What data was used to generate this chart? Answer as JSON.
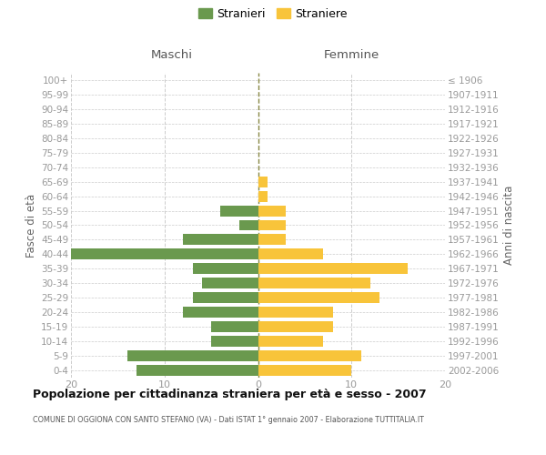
{
  "age_groups": [
    "100+",
    "95-99",
    "90-94",
    "85-89",
    "80-84",
    "75-79",
    "70-74",
    "65-69",
    "60-64",
    "55-59",
    "50-54",
    "45-49",
    "40-44",
    "35-39",
    "30-34",
    "25-29",
    "20-24",
    "15-19",
    "10-14",
    "5-9",
    "0-4"
  ],
  "birth_years": [
    "≤ 1906",
    "1907-1911",
    "1912-1916",
    "1917-1921",
    "1922-1926",
    "1927-1931",
    "1932-1936",
    "1937-1941",
    "1942-1946",
    "1947-1951",
    "1952-1956",
    "1957-1961",
    "1962-1966",
    "1967-1971",
    "1972-1976",
    "1977-1981",
    "1982-1986",
    "1987-1991",
    "1992-1996",
    "1997-2001",
    "2002-2006"
  ],
  "maschi": [
    0,
    0,
    0,
    0,
    0,
    0,
    0,
    0,
    0,
    4,
    2,
    8,
    20,
    7,
    6,
    7,
    8,
    5,
    5,
    14,
    13
  ],
  "femmine": [
    0,
    0,
    0,
    0,
    0,
    0,
    0,
    1,
    1,
    3,
    3,
    3,
    7,
    16,
    12,
    13,
    8,
    8,
    7,
    11,
    10
  ],
  "maschi_color": "#6a994e",
  "femmine_color": "#f8c43a",
  "grid_color": "#cccccc",
  "center_line_color": "#888844",
  "title": "Popolazione per cittadinanza straniera per età e sesso - 2007",
  "subtitle": "COMUNE DI OGGIONA CON SANTO STEFANO (VA) - Dati ISTAT 1° gennaio 2007 - Elaborazione TUTTITALIA.IT",
  "header_left": "Maschi",
  "header_right": "Femmine",
  "ylabel_left": "Fasce di età",
  "ylabel_right": "Anni di nascita",
  "legend_stranieri": "Stranieri",
  "legend_straniere": "Straniere",
  "xlim": 20,
  "bar_height": 0.75,
  "bg_color": "#ffffff",
  "tick_color": "#999999",
  "label_color": "#666666",
  "header_color": "#555555",
  "title_color": "#111111",
  "subtitle_color": "#555555"
}
